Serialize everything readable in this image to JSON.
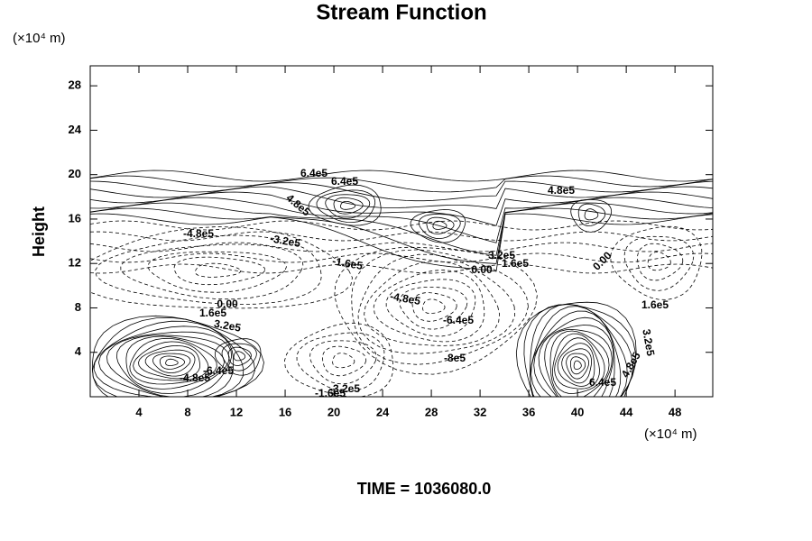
{
  "chart_data": {
    "type": "contour",
    "title": "Stream Function",
    "ylabel": "Height",
    "y_unit_label": "(×10⁴ m)",
    "x_unit_label": "(×10⁴ m)",
    "xlim": [
      0,
      51.1
    ],
    "ylim": [
      0,
      29.8
    ],
    "xticks": [
      4,
      8,
      12,
      16,
      20,
      24,
      28,
      32,
      36,
      40,
      44,
      48
    ],
    "yticks": [
      4,
      8,
      12,
      16,
      20,
      24,
      28
    ],
    "contour_labels": [
      "6.4e5",
      "6.4e5",
      "4.8e5",
      "-4.8e5",
      "-3.2e5",
      "-1.6e5",
      "3.2e5",
      "0.00",
      "1.6e5",
      "4.8e5",
      "0.00",
      "-4.8e5",
      "-6.4e5",
      "-8e5",
      "1.6e5",
      "0.00",
      "1.6e5",
      "3.2e5",
      "3.2e5",
      "-4.8e5",
      "-6.4e5",
      "-1.6e5",
      "-3.2e5",
      "6.4e5",
      "4.8e5"
    ],
    "footer": "TIME = 1036080.0"
  }
}
